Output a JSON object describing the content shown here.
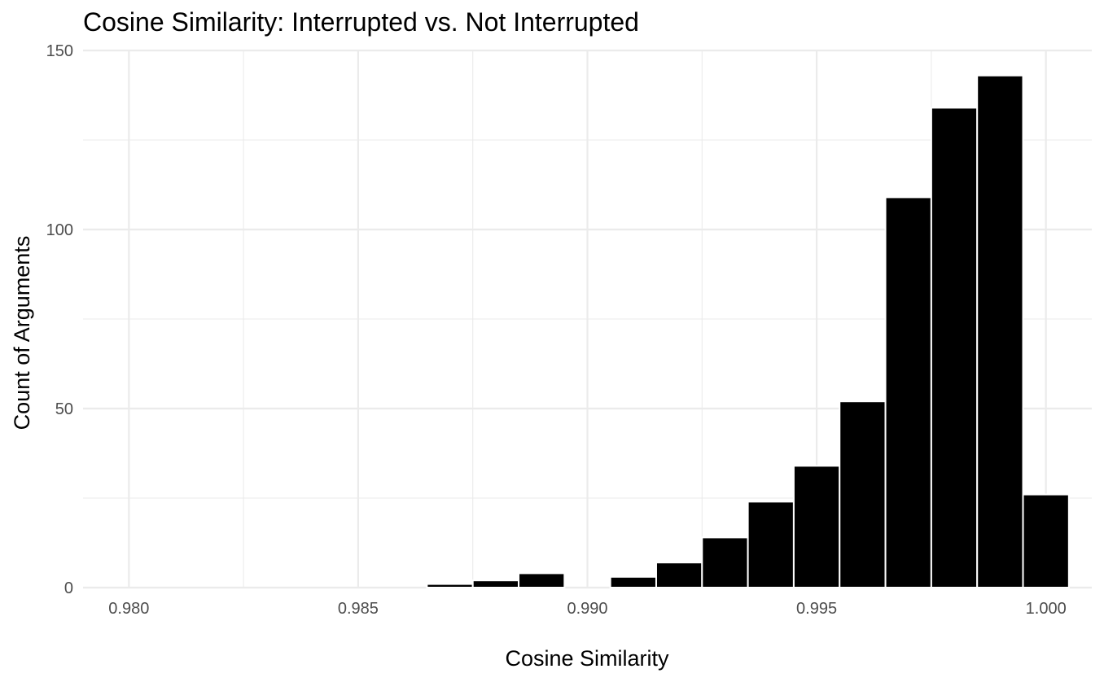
{
  "chart_data": {
    "type": "bar",
    "subtype": "histogram",
    "title": "Cosine Similarity: Interrupted vs. Not Interrupted",
    "xlabel": "Cosine Similarity",
    "ylabel": "Count of Arguments",
    "xlim": [
      0.979,
      1.001
    ],
    "ylim": [
      0,
      150
    ],
    "x_ticks": [
      0.98,
      0.985,
      0.99,
      0.995,
      1.0
    ],
    "x_tick_labels": [
      "0.980",
      "0.985",
      "0.990",
      "0.995",
      "1.000"
    ],
    "y_ticks": [
      0,
      50,
      100,
      150
    ],
    "y_tick_labels": [
      "0",
      "50",
      "100",
      "150"
    ],
    "bin_width": 0.001,
    "series": [
      {
        "bin_centers": [
          0.98,
          0.981,
          0.982,
          0.983,
          0.984,
          0.985,
          0.986,
          0.987,
          0.988,
          0.989,
          0.99,
          0.991,
          0.992,
          0.993,
          0.994,
          0.995,
          0.996,
          0.997,
          0.998,
          0.999,
          1.0
        ],
        "values": [
          0,
          0,
          0,
          0,
          0,
          0,
          0,
          1,
          2,
          4,
          0,
          3,
          7,
          14,
          24,
          34,
          52,
          109,
          134,
          143,
          26
        ]
      }
    ],
    "bar_color": "#000000",
    "bar_outline": "#ffffff",
    "grid": true,
    "legend": false
  }
}
